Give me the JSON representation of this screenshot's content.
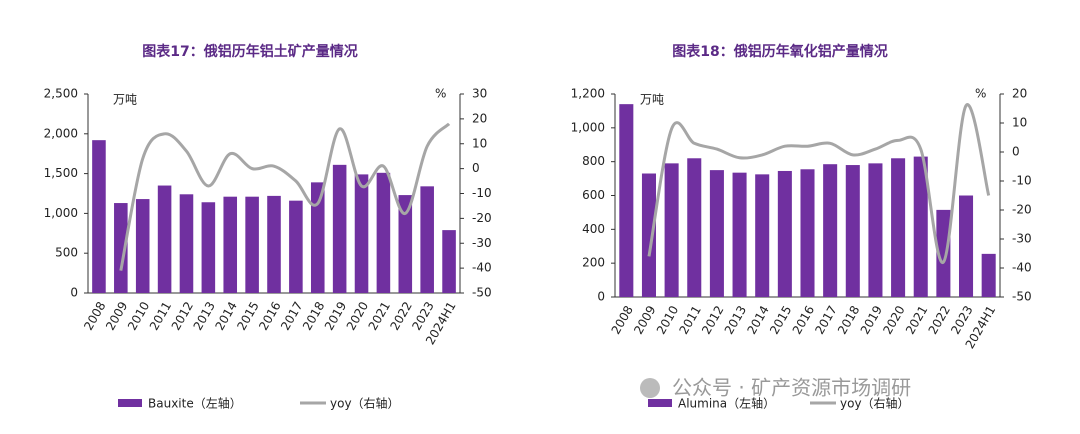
{
  "chart_data": [
    {
      "type": "bar_line",
      "title": "图表17：俄铝历年铝土矿产量情况",
      "unit_left": "万吨",
      "unit_right": "%",
      "categories": [
        "2008",
        "2009",
        "2010",
        "2011",
        "2012",
        "2013",
        "2014",
        "2015",
        "2016",
        "2017",
        "2018",
        "2019",
        "2020",
        "2021",
        "2022",
        "2023",
        "2024H1"
      ],
      "series": [
        {
          "name": "Bauxite（左轴）",
          "color": "#7030a0",
          "values": [
            1920,
            1130,
            1180,
            1350,
            1240,
            1140,
            1210,
            1210,
            1220,
            1160,
            1390,
            1610,
            1490,
            1510,
            1230,
            1340,
            790
          ]
        },
        {
          "name": "yoy（右轴）",
          "color": "#a6a6a6",
          "axis": "y2",
          "values": [
            null,
            -41,
            4,
            14,
            7,
            -7,
            6,
            0,
            1,
            -5,
            -14,
            16,
            -7,
            1,
            -18,
            9,
            18
          ]
        }
      ],
      "ylim": [
        0,
        2500
      ],
      "yticks": [
        0,
        500,
        {
          "value": 1000,
          "label": "1,000"
        },
        {
          "value": 1500,
          "label": "1,500"
        },
        {
          "value": 2000,
          "label": "2,000"
        },
        {
          "value": 2500,
          "label": "2,500"
        }
      ],
      "y2lim": [
        -50,
        30
      ],
      "y2ticks": [
        -50,
        -40,
        -30,
        -20,
        -10,
        0,
        10,
        20,
        30
      ]
    },
    {
      "type": "bar_line",
      "title": "图表18：俄铝历年氧化铝产量情况",
      "unit_left": "万吨",
      "unit_right": "%",
      "categories": [
        "2008",
        "2009",
        "2010",
        "2011",
        "2012",
        "2013",
        "2014",
        "2015",
        "2016",
        "2017",
        "2018",
        "2019",
        "2020",
        "2021",
        "2022",
        "2023",
        "2024H1"
      ],
      "series": [
        {
          "name": "Alumina（左轴）",
          "color": "#7030a0",
          "values": [
            1140,
            730,
            790,
            820,
            750,
            735,
            725,
            745,
            755,
            785,
            780,
            790,
            820,
            830,
            515,
            600,
            255
          ]
        },
        {
          "name": "yoy（右轴）",
          "color": "#a6a6a6",
          "axis": "y2",
          "values": [
            null,
            -36,
            8,
            3,
            1,
            -2,
            -1,
            2,
            2,
            3,
            -1,
            1,
            4,
            1,
            -38,
            16,
            -15
          ]
        }
      ],
      "ylim": [
        0,
        1200
      ],
      "yticks": [
        0,
        200,
        400,
        600,
        800,
        {
          "value": 1000,
          "label": "1,000"
        },
        {
          "value": 1200,
          "label": "1,200"
        }
      ],
      "y2lim": [
        -50,
        20
      ],
      "y2ticks": [
        -50,
        -40,
        -30,
        -20,
        -10,
        0,
        10,
        20
      ]
    }
  ],
  "watermark": "公众号 · 矿产资源市场调研"
}
